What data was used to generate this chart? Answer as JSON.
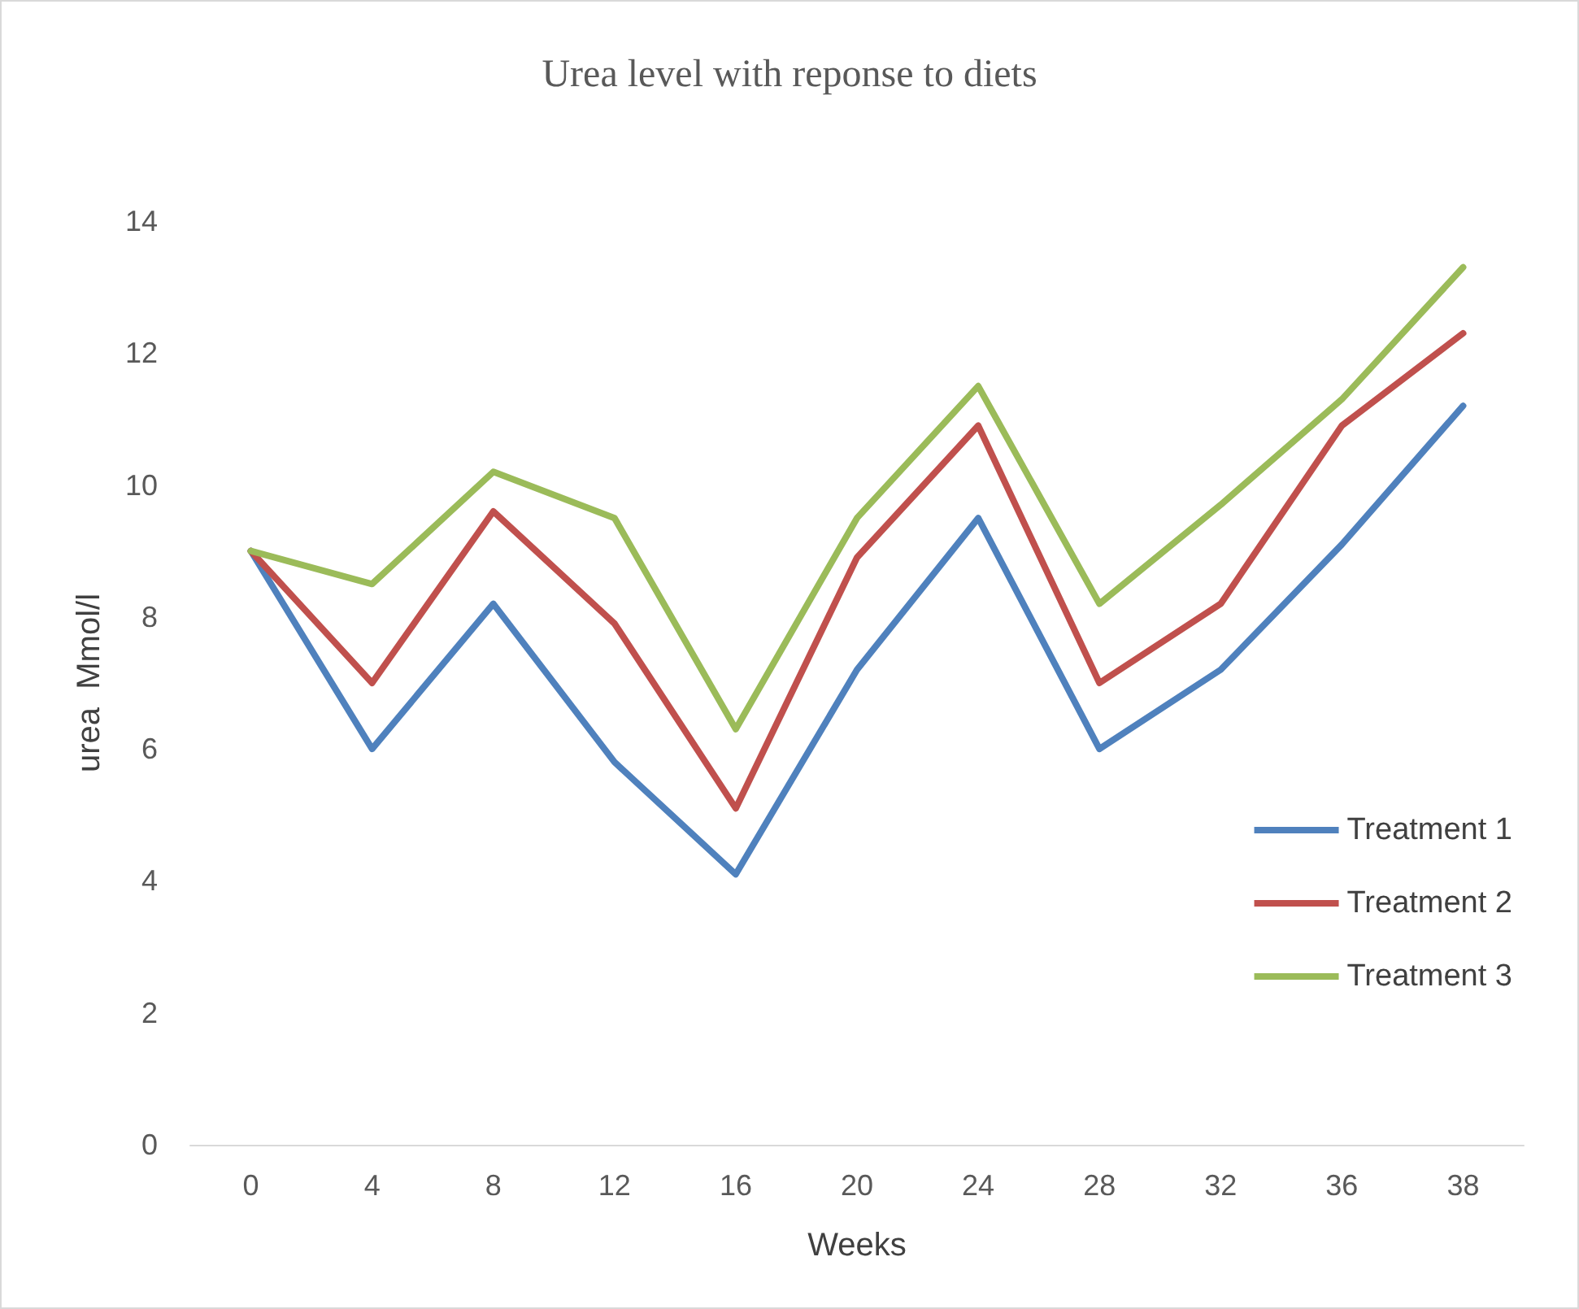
{
  "chart_data": {
    "type": "line",
    "title": "Urea level with reponse to diets",
    "xlabel": "Weeks",
    "ylabel": "urea  Mmol/l",
    "categories": [
      "0",
      "4",
      "8",
      "12",
      "16",
      "20",
      "24",
      "28",
      "32",
      "36",
      "38"
    ],
    "series": [
      {
        "name": "Treatment 1",
        "color": "#4f81bd",
        "values": [
          9.0,
          6.0,
          8.2,
          5.8,
          4.1,
          7.2,
          9.5,
          6.0,
          7.2,
          9.1,
          11.2
        ]
      },
      {
        "name": "Treatment 2",
        "color": "#c0504d",
        "values": [
          9.0,
          7.0,
          9.6,
          7.9,
          5.1,
          8.9,
          10.9,
          7.0,
          8.2,
          10.9,
          12.3
        ]
      },
      {
        "name": "Treatment 3",
        "color": "#9bbb59",
        "values": [
          9.0,
          8.5,
          10.2,
          9.5,
          6.3,
          9.5,
          11.5,
          8.2,
          9.7,
          11.3,
          13.3
        ]
      }
    ],
    "ylim": [
      0,
      14
    ],
    "yticks": [
      0,
      2,
      4,
      6,
      8,
      10,
      12,
      14
    ],
    "grid": false,
    "legend": "right",
    "marker": "none",
    "line_style": "solid"
  }
}
